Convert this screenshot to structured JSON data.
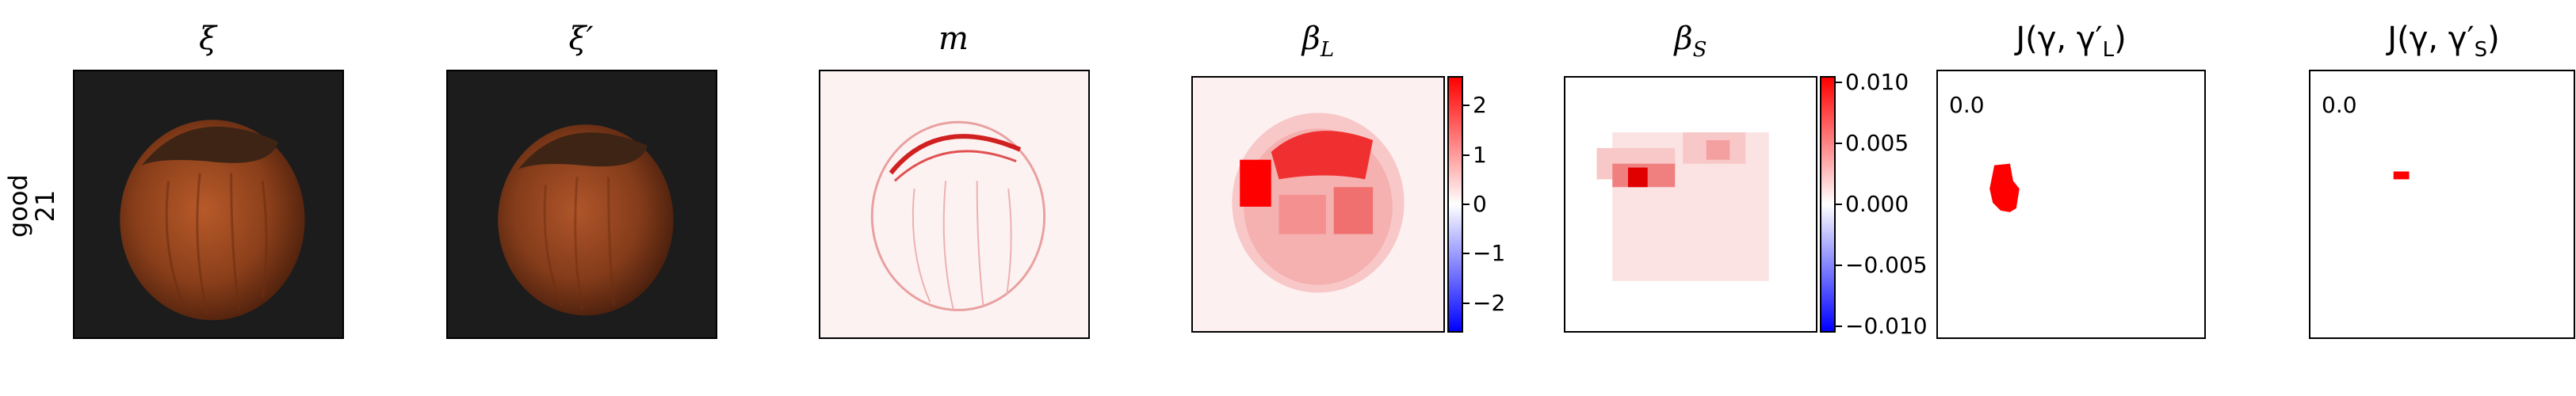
{
  "row_label": {
    "line1": "good",
    "line2": "21"
  },
  "panels": [
    {
      "title": "ξ"
    },
    {
      "title": "ξ′"
    },
    {
      "title": "m"
    },
    {
      "title_main": "β",
      "title_sub": "L"
    },
    {
      "title_main": "β",
      "title_sub": "S"
    },
    {
      "title": "J(γ, γ′",
      "title_sub": "L",
      "title_end": ")"
    },
    {
      "title": "J(γ, γ′",
      "title_sub": "S",
      "title_end": ")"
    }
  ],
  "corner_values": {
    "panel6": "0.0",
    "panel7": "0.0"
  },
  "colorbar_L": {
    "ticks": [
      "2",
      "1",
      "0",
      "−1",
      "−2"
    ],
    "range": [
      -2.6,
      2.6
    ]
  },
  "colorbar_S": {
    "ticks": [
      "0.010",
      "0.005",
      "0.000",
      "−0.005",
      "−0.010"
    ],
    "range": [
      -0.0105,
      0.0105
    ]
  },
  "colors": {
    "positive": "#ff0000",
    "negative": "#0000ff",
    "neutral": "#ffffff",
    "hazelnut": "#8a3f1a",
    "background_dark": "#1c1c1c"
  }
}
